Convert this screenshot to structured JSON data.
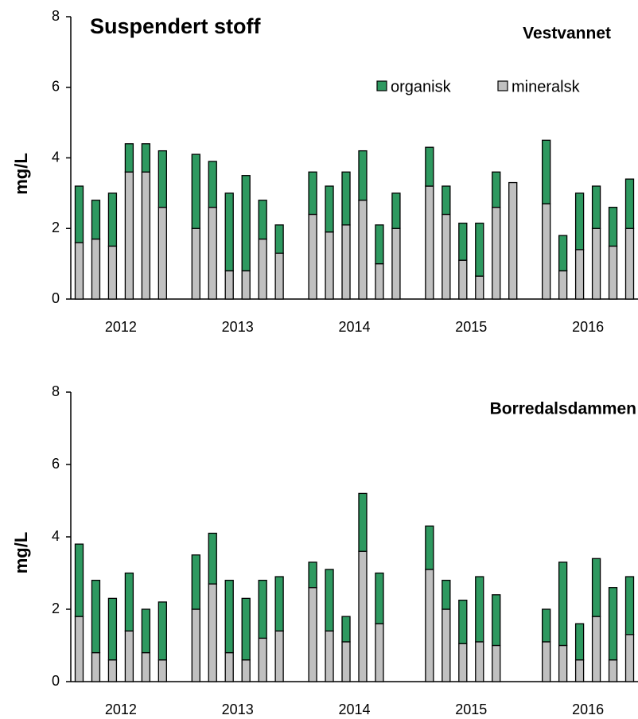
{
  "chart_data": [
    {
      "type": "stacked-bar",
      "title": "Suspendert stoff",
      "subtitle": "Vestvannet",
      "ylabel": "mg/L",
      "categories": [
        null,
        null,
        null,
        null,
        null,
        null,
        null,
        null,
        null,
        null,
        null,
        null,
        null,
        null,
        null,
        null,
        null,
        null,
        null,
        null,
        null,
        null,
        null,
        null,
        null,
        null,
        null,
        null,
        null,
        null,
        null,
        null,
        null,
        null
      ],
      "group_labels": [
        "2012",
        "2013",
        "2014",
        "2015",
        "2016"
      ],
      "series": [
        {
          "name": "organisk",
          "color": "#2e9960",
          "values": [
            1.6,
            1.1,
            1.5,
            0.8,
            0.8,
            1.6,
            null,
            2.1,
            1.3,
            2.2,
            2.7,
            1.1,
            0.8,
            null,
            1.2,
            1.3,
            1.5,
            1.4,
            1.1,
            1.0,
            null,
            1.1,
            0.8,
            1.05,
            1.5,
            1.0,
            0,
            null,
            1.8,
            1.0,
            1.6,
            1.2,
            1.1,
            1.4
          ]
        },
        {
          "name": "mineralsk",
          "color": "#c0c0c0",
          "values": [
            1.6,
            1.7,
            1.5,
            3.6,
            3.6,
            2.6,
            null,
            2.0,
            2.6,
            0.8,
            0.8,
            1.7,
            1.3,
            null,
            2.4,
            1.9,
            2.1,
            2.8,
            1.0,
            2.0,
            null,
            3.2,
            2.4,
            1.1,
            0.65,
            2.6,
            3.3,
            null,
            2.7,
            0.8,
            1.4,
            2.0,
            1.5,
            2.0
          ]
        }
      ],
      "ylim": [
        0,
        8
      ],
      "yticks": [
        0,
        2,
        4,
        6,
        8
      ],
      "grid": false,
      "legend": "upper right"
    },
    {
      "type": "stacked-bar",
      "subtitle": "Borredalsdammen",
      "ylabel": "mg/L",
      "categories": [
        null,
        null,
        null,
        null,
        null,
        null,
        null,
        null,
        null,
        null,
        null,
        null,
        null,
        null,
        null,
        null,
        null,
        null,
        null,
        null,
        null,
        null,
        null,
        null,
        null,
        null,
        null,
        null,
        null,
        null,
        null,
        null,
        null,
        null
      ],
      "group_labels": [
        "2012",
        "2013",
        "2014",
        "2015",
        "2016"
      ],
      "series": [
        {
          "color": "#2e9960",
          "values": [
            2.0,
            2.0,
            1.7,
            1.6,
            1.2,
            1.6,
            null,
            1.5,
            1.4,
            2.0,
            1.7,
            1.6,
            1.5,
            null,
            0.7,
            1.7,
            0.7,
            1.6,
            1.4,
            null,
            null,
            1.2,
            0.8,
            1.2,
            1.8,
            1.4,
            null,
            null,
            0.9,
            2.3,
            1.0,
            1.6,
            2.0,
            1.6
          ]
        },
        {
          "color": "#c0c0c0",
          "values": [
            1.8,
            0.8,
            0.6,
            1.4,
            0.8,
            0.6,
            null,
            2.0,
            2.7,
            0.8,
            0.6,
            1.2,
            1.4,
            null,
            2.6,
            1.4,
            1.1,
            3.6,
            1.6,
            null,
            null,
            3.1,
            2.0,
            1.05,
            1.1,
            1.0,
            null,
            null,
            1.1,
            1.0,
            0.6,
            1.8,
            0.6,
            1.3
          ]
        }
      ],
      "ylim": [
        0,
        8
      ],
      "yticks": [
        0,
        2,
        4,
        6,
        8
      ],
      "grid": false
    }
  ]
}
